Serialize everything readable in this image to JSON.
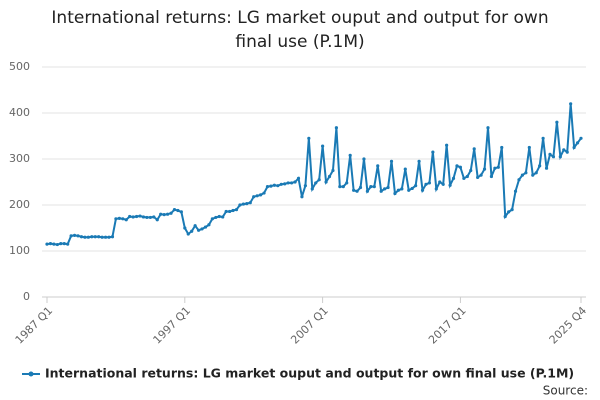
{
  "chart_data": {
    "type": "line",
    "title": "International returns: LG market ouput and output for own final use (P.1M)",
    "source": "Source:",
    "categories": [
      "1987 Q1",
      null,
      null,
      null,
      null,
      null,
      null,
      null,
      null,
      null,
      null,
      null,
      null,
      null,
      null,
      null,
      null,
      null,
      null,
      null,
      null,
      null,
      null,
      null,
      null,
      null,
      null,
      null,
      null,
      null,
      null,
      null,
      null,
      null,
      null,
      null,
      null,
      null,
      null,
      null,
      "1997 Q1",
      null,
      null,
      null,
      null,
      null,
      null,
      null,
      null,
      null,
      null,
      null,
      null,
      null,
      null,
      null,
      null,
      null,
      null,
      null,
      null,
      null,
      null,
      null,
      null,
      null,
      null,
      null,
      null,
      null,
      null,
      null,
      null,
      null,
      null,
      null,
      null,
      null,
      null,
      null,
      "2007 Q1",
      null,
      null,
      null,
      null,
      null,
      null,
      null,
      null,
      null,
      null,
      null,
      null,
      null,
      null,
      null,
      null,
      null,
      null,
      null,
      null,
      null,
      null,
      null,
      null,
      null,
      null,
      null,
      null,
      null,
      null,
      null,
      null,
      null,
      null,
      null,
      null,
      null,
      null,
      null,
      "2017 Q1",
      null,
      null,
      null,
      null,
      null,
      null,
      null,
      null,
      null,
      null,
      null,
      null,
      null,
      null,
      null,
      null,
      null,
      null,
      null,
      null,
      null,
      null,
      null,
      null,
      null,
      null,
      null,
      null,
      null,
      null,
      null,
      null,
      null,
      null,
      "2025 Q4"
    ],
    "series": [
      {
        "name": "International returns: LG market ouput and output for own final use (P.1M)",
        "color": "#1a7ab5",
        "values": [
          115,
          116,
          115,
          114,
          116,
          116,
          115,
          133,
          134,
          133,
          131,
          130,
          130,
          131,
          131,
          131,
          130,
          130,
          130,
          131,
          170,
          171,
          170,
          168,
          175,
          174,
          175,
          176,
          174,
          173,
          173,
          174,
          168,
          180,
          179,
          180,
          182,
          190,
          188,
          185,
          150,
          137,
          143,
          155,
          145,
          148,
          152,
          157,
          170,
          173,
          175,
          174,
          186,
          186,
          188,
          190,
          200,
          202,
          203,
          205,
          218,
          220,
          222,
          226,
          240,
          241,
          243,
          242,
          245,
          246,
          248,
          248,
          250,
          258,
          218,
          242,
          345,
          235,
          248,
          255,
          328,
          250,
          262,
          275,
          368,
          240,
          240,
          248,
          308,
          232,
          230,
          238,
          300,
          230,
          240,
          240,
          285,
          230,
          235,
          238,
          295,
          225,
          232,
          235,
          278,
          232,
          236,
          242,
          295,
          232,
          245,
          248,
          315,
          235,
          250,
          245,
          330,
          243,
          258,
          285,
          282,
          258,
          262,
          275,
          322,
          260,
          265,
          278,
          368,
          262,
          280,
          282,
          325,
          175,
          185,
          190,
          230,
          255,
          265,
          270,
          325,
          265,
          270,
          285,
          345,
          280,
          310,
          305,
          380,
          305,
          320,
          315,
          420,
          325,
          335,
          345
        ]
      }
    ],
    "ylim": [
      0,
      500
    ],
    "yticks": [
      0,
      100,
      200,
      300,
      400,
      500
    ],
    "grid": true
  }
}
